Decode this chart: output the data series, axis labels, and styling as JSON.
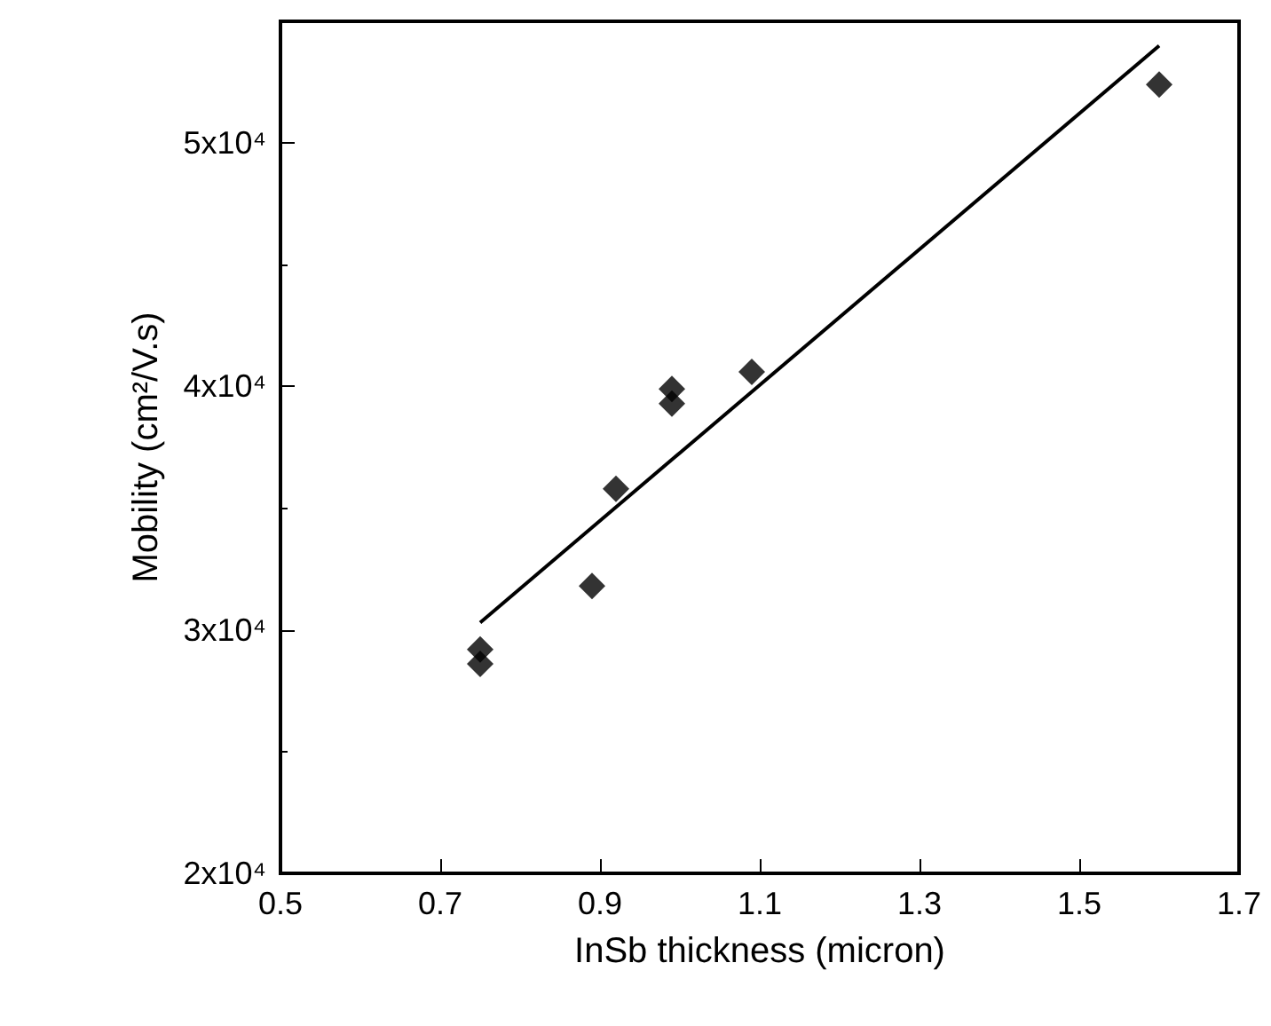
{
  "chart_data": {
    "type": "scatter",
    "xlabel": "InSb thickness (micron)",
    "ylabel": "Mobility (cm²/V.s)",
    "xlim": [
      0.5,
      1.7
    ],
    "xticks": [
      0.5,
      0.7,
      0.9,
      1.1,
      1.3,
      1.5,
      1.7
    ],
    "ylim": [
      20000,
      55000
    ],
    "yticks": [
      {
        "value": 20000,
        "label": "2x10⁴"
      },
      {
        "value": 30000,
        "label": "3x10⁴"
      },
      {
        "value": 40000,
        "label": "4x10⁴"
      },
      {
        "value": 50000,
        "label": "5x10⁴"
      }
    ],
    "marker": "diamond",
    "grid": false,
    "series": [
      {
        "color": "#000000",
        "x": [
          0.75,
          0.75,
          0.89,
          0.92,
          0.99,
          0.99,
          1.09,
          1.6
        ],
        "values": [
          28600,
          29200,
          31800,
          35800,
          39300,
          39900,
          40600,
          52400
        ]
      },
      {
        "type": "line",
        "color": "#000000",
        "marker": "none",
        "x": [
          0.75,
          1.6
        ],
        "values": [
          30300,
          54000
        ]
      }
    ]
  }
}
